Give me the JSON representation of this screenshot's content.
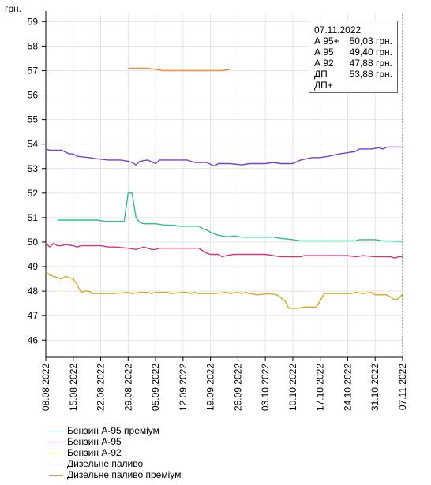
{
  "chart_data": {
    "type": "line",
    "unit_label": "грн.",
    "ylim": [
      45.3,
      59.3
    ],
    "yticks": [
      46,
      47,
      48,
      49,
      50,
      51,
      52,
      53,
      54,
      55,
      56,
      57,
      58,
      59
    ],
    "x_start": "08.08.2022",
    "x_end": "07.11.2022",
    "xticks": [
      "08.08.2022",
      "15.08.2022",
      "22.08.2022",
      "29.08.2022",
      "05.09.2022",
      "12.09.2022",
      "19.09.2022",
      "26.09.2022",
      "03.10.2022",
      "10.10.2022",
      "17.10.2022",
      "24.10.2022",
      "31.10.2022",
      "07.11.2022"
    ],
    "grid": true,
    "legend_position": "bottom",
    "series": [
      {
        "name": "Бензин А-95 преміум",
        "color": "#2ebd96",
        "points": [
          [
            "11.08.2022",
            50.9
          ],
          [
            "17.08.2022",
            50.9
          ],
          [
            "21.08.2022",
            50.9
          ],
          [
            "23.08.2022",
            50.85
          ],
          [
            "27.08.2022",
            50.85
          ],
          [
            "28.08.2022",
            50.85
          ],
          [
            "29.08.2022",
            52.0
          ],
          [
            "30.08.2022",
            52.0
          ],
          [
            "31.08.2022",
            51.0
          ],
          [
            "01.09.2022",
            50.8
          ],
          [
            "02.09.2022",
            50.75
          ],
          [
            "04.09.2022",
            50.75
          ],
          [
            "05.09.2022",
            50.75
          ],
          [
            "07.09.2022",
            50.7
          ],
          [
            "10.09.2022",
            50.68
          ],
          [
            "11.09.2022",
            50.65
          ],
          [
            "16.09.2022",
            50.65
          ],
          [
            "17.09.2022",
            50.55
          ],
          [
            "18.09.2022",
            50.5
          ],
          [
            "19.09.2022",
            50.4
          ],
          [
            "21.09.2022",
            50.28
          ],
          [
            "23.09.2022",
            50.22
          ],
          [
            "24.09.2022",
            50.22
          ],
          [
            "25.09.2022",
            50.25
          ],
          [
            "27.09.2022",
            50.2
          ],
          [
            "05.10.2022",
            50.2
          ],
          [
            "07.10.2022",
            50.15
          ],
          [
            "10.10.2022",
            50.1
          ],
          [
            "12.10.2022",
            50.05
          ],
          [
            "26.10.2022",
            50.05
          ],
          [
            "27.10.2022",
            50.1
          ],
          [
            "31.10.2022",
            50.1
          ],
          [
            "02.11.2022",
            50.05
          ],
          [
            "07.11.2022",
            50.03
          ]
        ]
      },
      {
        "name": "Бензин А-95",
        "color": "#e0327a",
        "points": [
          [
            "08.08.2022",
            49.95
          ],
          [
            "09.08.2022",
            49.8
          ],
          [
            "10.08.2022",
            49.95
          ],
          [
            "11.08.2022",
            49.85
          ],
          [
            "12.08.2022",
            49.85
          ],
          [
            "13.08.2022",
            49.9
          ],
          [
            "15.08.2022",
            49.85
          ],
          [
            "16.08.2022",
            49.8
          ],
          [
            "17.08.2022",
            49.85
          ],
          [
            "20.08.2022",
            49.85
          ],
          [
            "22.08.2022",
            49.85
          ],
          [
            "24.08.2022",
            49.8
          ],
          [
            "26.08.2022",
            49.8
          ],
          [
            "29.08.2022",
            49.75
          ],
          [
            "31.08.2022",
            49.7
          ],
          [
            "01.09.2022",
            49.75
          ],
          [
            "02.09.2022",
            49.8
          ],
          [
            "04.09.2022",
            49.7
          ],
          [
            "05.09.2022",
            49.7
          ],
          [
            "06.09.2022",
            49.75
          ],
          [
            "09.09.2022",
            49.75
          ],
          [
            "13.09.2022",
            49.75
          ],
          [
            "16.09.2022",
            49.75
          ],
          [
            "17.09.2022",
            49.65
          ],
          [
            "18.09.2022",
            49.55
          ],
          [
            "19.09.2022",
            49.5
          ],
          [
            "21.09.2022",
            49.5
          ],
          [
            "22.09.2022",
            49.4
          ],
          [
            "23.09.2022",
            49.45
          ],
          [
            "25.09.2022",
            49.5
          ],
          [
            "27.09.2022",
            49.5
          ],
          [
            "03.10.2022",
            49.5
          ],
          [
            "05.10.2022",
            49.45
          ],
          [
            "07.10.2022",
            49.4
          ],
          [
            "12.10.2022",
            49.4
          ],
          [
            "13.10.2022",
            49.45
          ],
          [
            "24.10.2022",
            49.45
          ],
          [
            "26.10.2022",
            49.4
          ],
          [
            "28.10.2022",
            49.45
          ],
          [
            "31.10.2022",
            49.4
          ],
          [
            "04.11.2022",
            49.4
          ],
          [
            "05.11.2022",
            49.35
          ],
          [
            "06.11.2022",
            49.4
          ],
          [
            "07.11.2022",
            49.4
          ]
        ]
      },
      {
        "name": "Бензин А-92",
        "color": "#d9a81c",
        "points": [
          [
            "08.08.2022",
            48.8
          ],
          [
            "09.08.2022",
            48.65
          ],
          [
            "10.08.2022",
            48.6
          ],
          [
            "11.08.2022",
            48.55
          ],
          [
            "12.08.2022",
            48.5
          ],
          [
            "13.08.2022",
            48.6
          ],
          [
            "14.08.2022",
            48.55
          ],
          [
            "15.08.2022",
            48.5
          ],
          [
            "16.08.2022",
            48.25
          ],
          [
            "17.08.2022",
            47.95
          ],
          [
            "18.08.2022",
            48.0
          ],
          [
            "19.08.2022",
            48.0
          ],
          [
            "20.08.2022",
            47.9
          ],
          [
            "22.08.2022",
            47.9
          ],
          [
            "25.08.2022",
            47.9
          ],
          [
            "29.08.2022",
            47.95
          ],
          [
            "30.08.2022",
            47.9
          ],
          [
            "01.09.2022",
            47.95
          ],
          [
            "03.09.2022",
            47.95
          ],
          [
            "04.09.2022",
            47.9
          ],
          [
            "05.09.2022",
            47.95
          ],
          [
            "08.09.2022",
            47.95
          ],
          [
            "09.09.2022",
            47.9
          ],
          [
            "12.09.2022",
            47.95
          ],
          [
            "13.09.2022",
            47.95
          ],
          [
            "14.09.2022",
            47.9
          ],
          [
            "15.09.2022",
            47.95
          ],
          [
            "16.09.2022",
            47.9
          ],
          [
            "20.09.2022",
            47.9
          ],
          [
            "23.09.2022",
            47.95
          ],
          [
            "24.09.2022",
            47.9
          ],
          [
            "26.09.2022",
            47.95
          ],
          [
            "27.09.2022",
            47.9
          ],
          [
            "28.09.2022",
            47.95
          ],
          [
            "29.09.2022",
            47.9
          ],
          [
            "01.10.2022",
            47.85
          ],
          [
            "04.10.2022",
            47.9
          ],
          [
            "06.10.2022",
            47.85
          ],
          [
            "08.10.2022",
            47.6
          ],
          [
            "09.10.2022",
            47.3
          ],
          [
            "11.10.2022",
            47.3
          ],
          [
            "13.10.2022",
            47.35
          ],
          [
            "16.10.2022",
            47.35
          ],
          [
            "17.10.2022",
            47.6
          ],
          [
            "18.10.2022",
            47.9
          ],
          [
            "25.10.2022",
            47.9
          ],
          [
            "26.10.2022",
            47.95
          ],
          [
            "28.10.2022",
            47.9
          ],
          [
            "30.10.2022",
            47.95
          ],
          [
            "31.10.2022",
            47.85
          ],
          [
            "03.11.2022",
            47.85
          ],
          [
            "05.11.2022",
            47.65
          ],
          [
            "06.11.2022",
            47.7
          ],
          [
            "07.11.2022",
            47.88
          ]
        ]
      },
      {
        "name": "Дизельне паливо",
        "color": "#7a3fd0",
        "points": [
          [
            "08.08.2022",
            53.8
          ],
          [
            "09.08.2022",
            53.75
          ],
          [
            "12.08.2022",
            53.75
          ],
          [
            "14.08.2022",
            53.6
          ],
          [
            "15.08.2022",
            53.6
          ],
          [
            "16.08.2022",
            53.5
          ],
          [
            "19.08.2022",
            53.45
          ],
          [
            "21.08.2022",
            53.4
          ],
          [
            "24.08.2022",
            53.35
          ],
          [
            "27.08.2022",
            53.35
          ],
          [
            "29.08.2022",
            53.3
          ],
          [
            "30.08.2022",
            53.25
          ],
          [
            "31.08.2022",
            53.15
          ],
          [
            "01.09.2022",
            53.3
          ],
          [
            "03.09.2022",
            53.35
          ],
          [
            "05.09.2022",
            53.2
          ],
          [
            "06.09.2022",
            53.35
          ],
          [
            "08.09.2022",
            53.35
          ],
          [
            "11.09.2022",
            53.35
          ],
          [
            "13.09.2022",
            53.35
          ],
          [
            "15.09.2022",
            53.25
          ],
          [
            "18.09.2022",
            53.25
          ],
          [
            "20.09.2022",
            53.1
          ],
          [
            "21.09.2022",
            53.2
          ],
          [
            "24.09.2022",
            53.2
          ],
          [
            "27.09.2022",
            53.15
          ],
          [
            "29.09.2022",
            53.2
          ],
          [
            "03.10.2022",
            53.2
          ],
          [
            "05.10.2022",
            53.25
          ],
          [
            "07.10.2022",
            53.2
          ],
          [
            "10.10.2022",
            53.2
          ],
          [
            "12.10.2022",
            53.35
          ],
          [
            "15.10.2022",
            53.45
          ],
          [
            "17.10.2022",
            53.45
          ],
          [
            "19.10.2022",
            53.5
          ],
          [
            "22.10.2022",
            53.6
          ],
          [
            "24.10.2022",
            53.65
          ],
          [
            "26.10.2022",
            53.7
          ],
          [
            "27.10.2022",
            53.8
          ],
          [
            "30.10.2022",
            53.8
          ],
          [
            "01.11.2022",
            53.85
          ],
          [
            "02.11.2022",
            53.8
          ],
          [
            "03.11.2022",
            53.88
          ],
          [
            "07.11.2022",
            53.88
          ]
        ]
      },
      {
        "name": "Дизельне паливо преміум",
        "color": "#f5883a",
        "points": [
          [
            "29.08.2022",
            57.1
          ],
          [
            "03.09.2022",
            57.1
          ],
          [
            "05.09.2022",
            57.05
          ],
          [
            "07.09.2022",
            57.0
          ],
          [
            "22.09.2022",
            57.0
          ],
          [
            "24.09.2022",
            57.05
          ]
        ]
      }
    ]
  },
  "tooltip": {
    "date": "07.11.2022",
    "rows": [
      {
        "label": "А 95+",
        "value": "50,03 грн."
      },
      {
        "label": "А 95",
        "value": "49,40 грн."
      },
      {
        "label": "А 92",
        "value": "47,88 грн."
      },
      {
        "label": "ДП",
        "value": "53,88 грн."
      },
      {
        "label": "ДП+",
        "value": ""
      }
    ]
  }
}
